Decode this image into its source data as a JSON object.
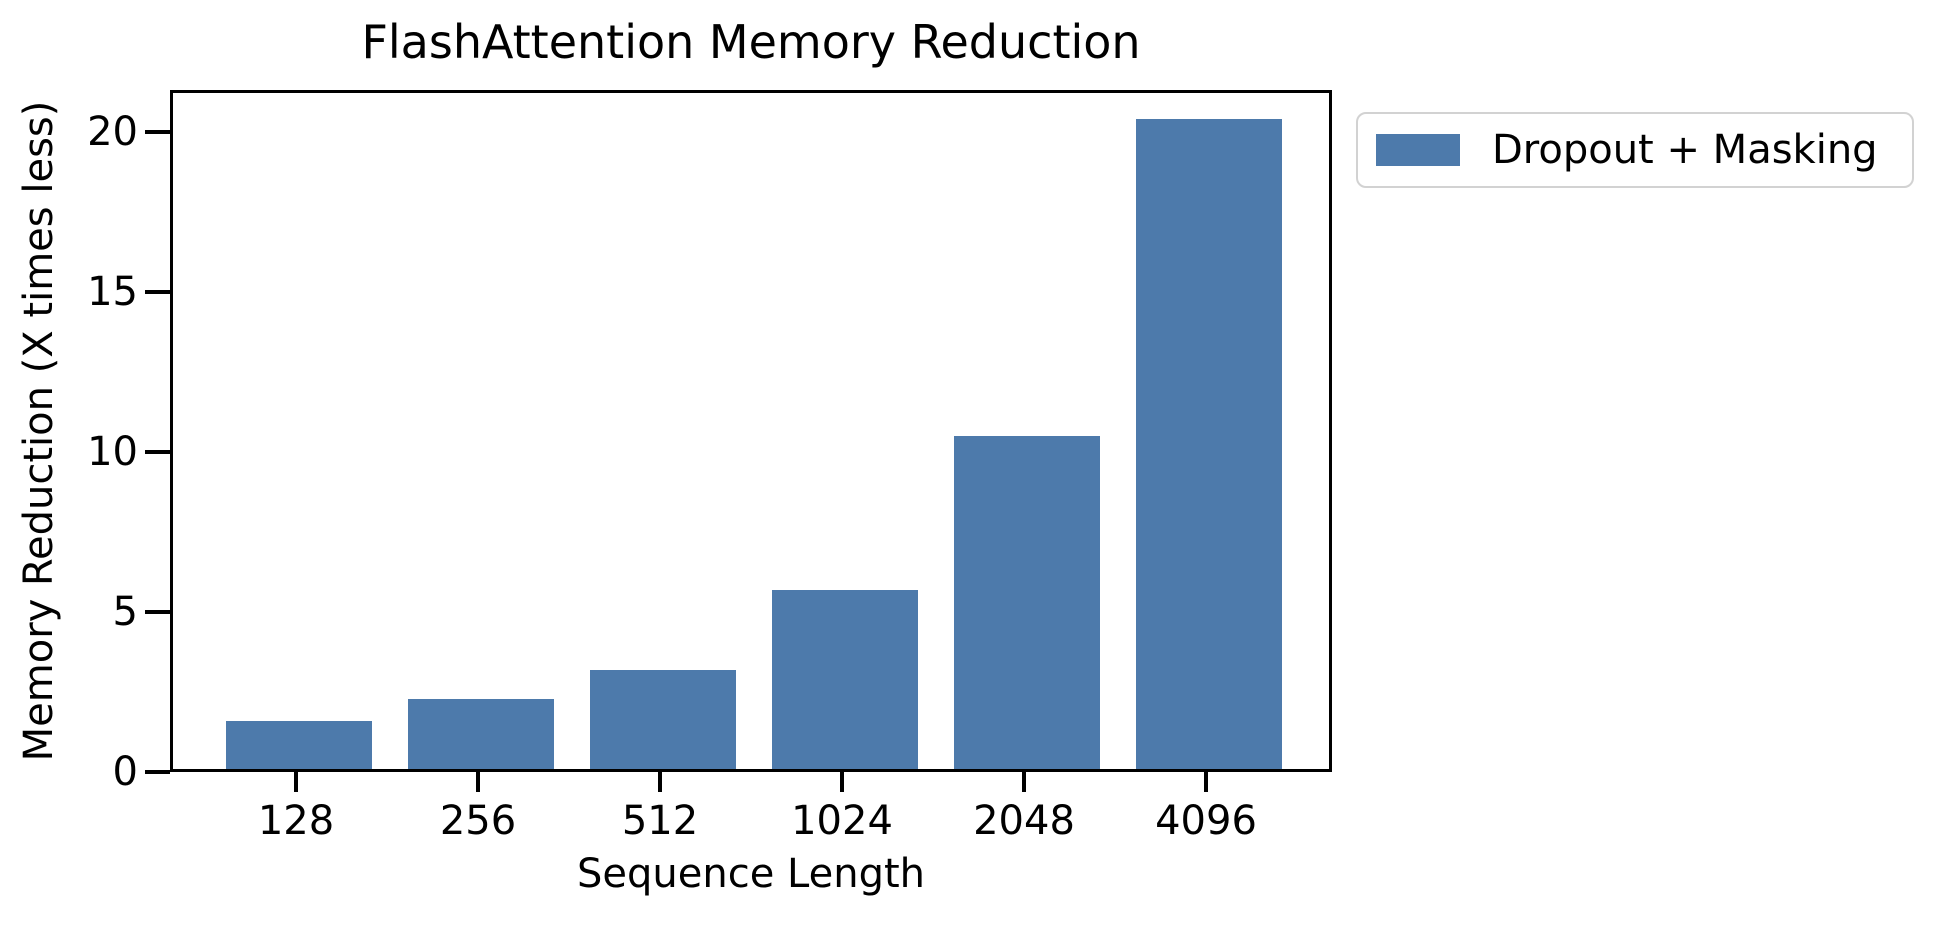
{
  "figure": {
    "title": "FlashAttention Memory Reduction"
  },
  "chart_data": {
    "type": "bar",
    "title": "FlashAttention Memory Reduction",
    "xlabel": "Sequence Length",
    "ylabel": "Memory Reduction (X times less)",
    "categories": [
      "128",
      "256",
      "512",
      "1024",
      "2048",
      "4096"
    ],
    "values": [
      1.5,
      2.2,
      3.1,
      5.6,
      10.4,
      20.3
    ],
    "series": [
      {
        "name": "Dropout + Masking",
        "values": [
          1.5,
          2.2,
          3.1,
          5.6,
          10.4,
          20.3
        ]
      }
    ],
    "yticks": [
      0,
      5,
      10,
      15,
      20
    ],
    "ylim": [
      0,
      21.3
    ],
    "grid": false,
    "legend_position": "outside-upper-right",
    "bar_color": "#4d7aab",
    "axis_color": "#000000",
    "background_color": "#ffffff"
  },
  "legend": {
    "label": "Dropout + Masking",
    "swatch_color": "#4d7aab"
  }
}
